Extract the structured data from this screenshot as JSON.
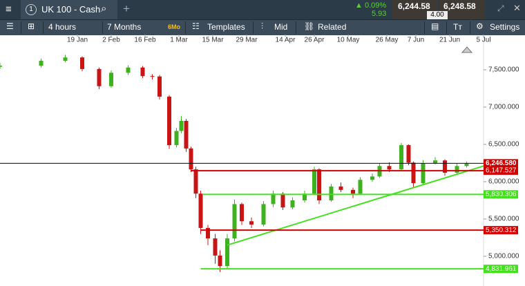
{
  "toolbar": {
    "tab_number": "1",
    "instrument": "UK 100 - Cash",
    "add": "+",
    "change_pct": "0.09%",
    "change": "5.93",
    "sell": "6,244.58",
    "spread": "4.00",
    "buy": "6,248.58"
  },
  "toolbar2": {
    "interval": "4 hours",
    "range": "7 Months",
    "range_badge": "6Mo",
    "templates": "Templates",
    "mid": "Mid",
    "related": "Related",
    "settings": "Settings"
  },
  "chart_data": {
    "type": "candlestick",
    "x": [
      -13,
      4,
      14,
      21,
      28,
      33,
      40,
      46,
      50,
      53,
      57,
      60,
      62,
      64,
      66,
      68,
      70,
      73,
      76,
      78,
      81,
      84,
      87,
      91,
      96,
      100,
      104,
      108,
      113,
      117,
      119,
      124,
      128,
      133,
      136,
      141,
      144,
      148,
      153,
      156,
      158,
      162,
      167,
      171,
      176,
      180
    ],
    "open": [
      7540,
      7555,
      7620,
      7665,
      7510,
      7280,
      7460,
      7530,
      7415,
      7410,
      7140,
      6490,
      6680,
      6815,
      6445,
      6165,
      5840,
      5380,
      5240,
      5010,
      4870,
      5240,
      5700,
      5470,
      5425,
      5700,
      5840,
      5655,
      5750,
      5840,
      6165,
      5750,
      5935,
      5890,
      5840,
      6025,
      6070,
      6210,
      6165,
      6490,
      6255,
      5980,
      6250,
      6285,
      6120,
      6210
    ],
    "high": [
      7590,
      7650,
      7700,
      7680,
      7530,
      7490,
      7560,
      7550,
      7440,
      7430,
      7160,
      6720,
      6880,
      6840,
      6470,
      6200,
      5880,
      5420,
      5300,
      5080,
      5300,
      5760,
      5720,
      5520,
      5740,
      5880,
      5860,
      5790,
      5880,
      6200,
      6180,
      5970,
      5990,
      5920,
      6060,
      6110,
      6250,
      6260,
      6520,
      6500,
      6270,
      6290,
      6330,
      6300,
      6250,
      6270
    ],
    "low": [
      7510,
      7530,
      7600,
      7480,
      7240,
      7260,
      7430,
      7390,
      7370,
      7100,
      6440,
      6460,
      6650,
      6400,
      6130,
      5780,
      5300,
      5150,
      4900,
      4790,
      4840,
      5200,
      5420,
      5380,
      5400,
      5660,
      5620,
      5630,
      5720,
      5820,
      5700,
      5730,
      5860,
      5780,
      5820,
      6000,
      6050,
      6130,
      6150,
      6220,
      5930,
      5960,
      6230,
      6080,
      6100,
      6190
    ],
    "close": [
      7555,
      7620,
      7665,
      7510,
      7280,
      7460,
      7530,
      7415,
      7410,
      7140,
      6490,
      6680,
      6815,
      6445,
      6165,
      5840,
      5380,
      5240,
      5010,
      4870,
      5240,
      5700,
      5470,
      5425,
      5700,
      5840,
      5655,
      5750,
      5840,
      6165,
      5750,
      5935,
      5890,
      5840,
      6025,
      6070,
      6210,
      6165,
      6490,
      6255,
      5980,
      6250,
      6285,
      6120,
      6210,
      6240
    ],
    "up_color": "#3cb31e",
    "down_color": "#c81414",
    "xlim": [
      -13,
      187
    ],
    "xticks": [
      {
        "value": 19,
        "label": "19 Jan"
      },
      {
        "value": 33,
        "label": "2 Feb"
      },
      {
        "value": 47,
        "label": "16 Feb"
      },
      {
        "value": 61,
        "label": "1 Mar"
      },
      {
        "value": 75,
        "label": "15 Mar"
      },
      {
        "value": 89,
        "label": "29 Mar"
      },
      {
        "value": 105,
        "label": "14 Apr"
      },
      {
        "value": 117,
        "label": "26 Apr"
      },
      {
        "value": 131,
        "label": "10 May"
      },
      {
        "value": 147,
        "label": "26 May"
      },
      {
        "value": 159,
        "label": "7 Jun"
      },
      {
        "value": 173,
        "label": "21 Jun"
      },
      {
        "value": 187,
        "label": "5 Jul"
      }
    ],
    "ylim": [
      4602,
      7972
    ],
    "yticks": [
      {
        "value": 5000,
        "label": "5,000.000"
      },
      {
        "value": 5500,
        "label": "5,500.000"
      },
      {
        "value": 6000,
        "label": "6,000.000"
      },
      {
        "value": 6500,
        "label": "6,500.000"
      },
      {
        "value": 7000,
        "label": "7,000.000"
      },
      {
        "value": 7500,
        "label": "7,500.000"
      }
    ],
    "grid": false,
    "levels": [
      {
        "value": 6246.58,
        "label": "6,246.580",
        "color": "#000000",
        "label_color": "#cc0000",
        "from": -13
      },
      {
        "value": 6147.527,
        "label": "6,147.527",
        "color": "#d40000",
        "label_color": "#d40000",
        "from": 66
      },
      {
        "value": 5830.306,
        "label": "5,830.306",
        "color": "#44e020",
        "label_color": "#44e020",
        "from": 71
      },
      {
        "value": 5350.312,
        "label": "5,350.312",
        "color": "#d40000",
        "label_color": "#d40000",
        "from": 70
      },
      {
        "value": 4831.961,
        "label": "4,831.961",
        "color": "#44e020",
        "label_color": "#44e020",
        "from": 70
      }
    ],
    "trendline": {
      "x": [
        81,
        187
      ],
      "y": [
        5150,
        6210
      ],
      "color": "#44e020"
    }
  }
}
